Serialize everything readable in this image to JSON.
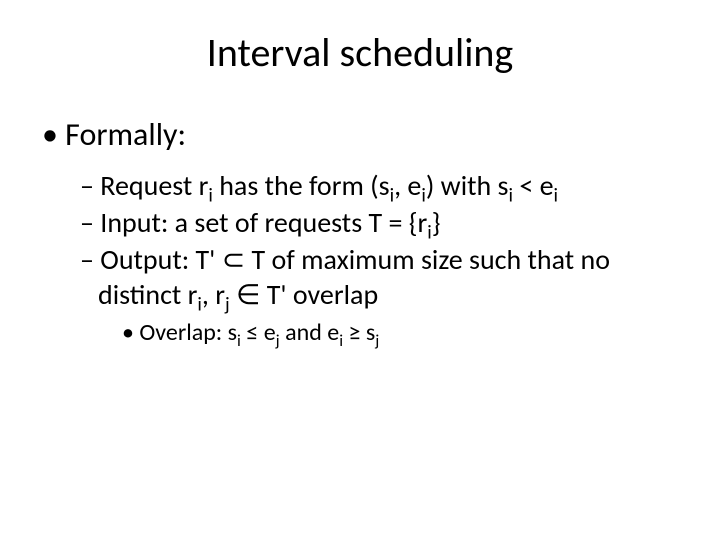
{
  "background_color": "#ffffff",
  "text_color": "#000000",
  "title": {
    "text": "Interval scheduling",
    "fontsize": 40,
    "align": "center"
  },
  "bullets": {
    "level1": {
      "text": "Formally:",
      "fontsize": 32
    },
    "level2": [
      {
        "html": "Request r<sub>i</sub> has the form (s<sub>i</sub>, e<sub>i</sub>) with s<sub>i</sub> < e<sub>i</sub>"
      },
      {
        "html": "Input: a set of requests T = {r<sub>i</sub>}"
      },
      {
        "html": "Output: T' ⊂ T of maximum size such that no distinct r<sub>i</sub>, r<sub>j</sub> ∈ T' overlap"
      }
    ],
    "level3": {
      "html": "Overlap: s<sub>i</sub> ≤ e<sub>j</sub> and e<sub>i</sub> ≥ s<sub>j</sub>",
      "fontsize": 24
    }
  }
}
